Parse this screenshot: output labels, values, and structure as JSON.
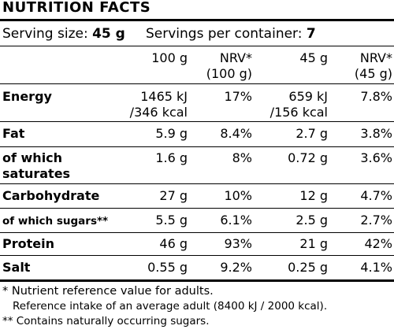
{
  "title": "NUTRITION FACTS",
  "serving": {
    "size_label": "Serving size: ",
    "size_value": "45 g",
    "servings_label": "Servings per container: ",
    "servings_value": "7"
  },
  "columns": [
    "100 g",
    "NRV*\n(100 g)",
    "45 g",
    "NRV*\n(45 g)"
  ],
  "rows": [
    {
      "label": "Energy",
      "c1": "1465 kJ\n/346 kcal",
      "c2": "17%",
      "c3": "659 kJ\n/156 kcal",
      "c4": "7.8%"
    },
    {
      "label": "Fat",
      "c1": "5.9 g",
      "c2": "8.4%",
      "c3": "2.7 g",
      "c4": "3.8%"
    },
    {
      "label": "of which\nsaturates",
      "c1": "1.6 g",
      "c2": "8%",
      "c3": "0.72 g",
      "c4": "3.6%"
    },
    {
      "label": "Carbohydrate",
      "c1": "27 g",
      "c2": "10%",
      "c3": "12 g",
      "c4": "4.7%"
    },
    {
      "label": "of which sugars**",
      "c1": "5.5 g",
      "c2": "6.1%",
      "c3": "2.5 g",
      "c4": "2.7%"
    },
    {
      "label": "Protein",
      "c1": "46 g",
      "c2": "93%",
      "c3": "21 g",
      "c4": "42%"
    },
    {
      "label": "Salt",
      "c1": "0.55 g",
      "c2": "9.2%",
      "c3": "0.25 g",
      "c4": "4.1%"
    }
  ],
  "footnotes": [
    "* Nutrient reference value for adults.",
    "Reference intake of an average adult (8400 kJ / 2000 kcal).",
    "** Contains naturally occurring sugars."
  ]
}
